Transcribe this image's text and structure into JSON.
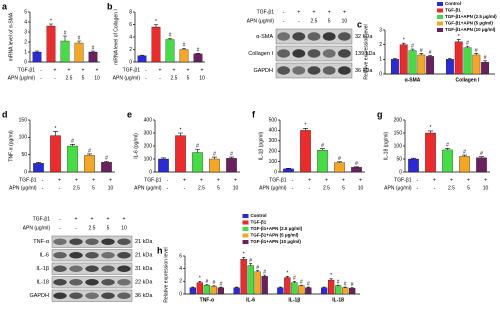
{
  "chart_data": [
    {
      "type": "bar",
      "panel": "a",
      "ylabel": "mRNA level of α-SMA",
      "values": [
        1.0,
        3.6,
        2.1,
        1.9,
        1.0
      ],
      "errors": [
        0.1,
        0.2,
        0.5,
        0.2,
        0.1
      ],
      "colors": [
        "#2a2ad8",
        "#ee2a2a",
        "#44dd44",
        "#f5a623",
        "#6b2060"
      ],
      "markers": [
        null,
        "*",
        "#",
        "#",
        "#"
      ],
      "ylim": [
        0,
        5
      ],
      "yticks": [
        0,
        1,
        2,
        3,
        4,
        5
      ],
      "treatments": [
        {
          "label": "TGF-β1",
          "marks": [
            "-",
            "+",
            "+",
            "+",
            "+"
          ]
        },
        {
          "label": "APN (μg/ml)",
          "marks": [
            "-",
            "-",
            "2.5",
            "5",
            "10"
          ]
        }
      ]
    },
    {
      "type": "bar",
      "panel": "b",
      "ylabel": "mRNA level of Collagen I",
      "values": [
        1.0,
        5.6,
        3.6,
        2.0,
        1.3
      ],
      "errors": [
        0.1,
        0.4,
        0.2,
        0.2,
        0.1
      ],
      "colors": [
        "#2a2ad8",
        "#ee2a2a",
        "#44dd44",
        "#f5a623",
        "#6b2060"
      ],
      "markers": [
        null,
        "*",
        "#",
        "#",
        "#"
      ],
      "ylim": [
        0,
        8
      ],
      "yticks": [
        0,
        2,
        4,
        6,
        8
      ],
      "treatments": [
        {
          "label": "TGF-β1",
          "marks": [
            "-",
            "+",
            "+",
            "+",
            "+"
          ]
        },
        {
          "label": "APN (μg/ml)",
          "marks": [
            "-",
            "-",
            "2.5",
            "5",
            "10"
          ]
        }
      ]
    },
    {
      "type": "grouped_bar",
      "panel": "c",
      "ylabel": "Relative expression level",
      "categories": [
        "α-SMA",
        "Collagen I"
      ],
      "legend": "upper right",
      "ylim": [
        0,
        3
      ],
      "yticks": [
        0,
        1,
        2,
        3
      ],
      "series": [
        {
          "name": "Control",
          "color": "#2a2ad8",
          "values": [
            1.0,
            1.0
          ],
          "errors": [
            0.05,
            0.05
          ],
          "markers": [
            null,
            null
          ]
        },
        {
          "name": "TGF-β1",
          "color": "#ee2a2a",
          "values": [
            2.0,
            2.2
          ],
          "errors": [
            0.1,
            0.15
          ],
          "markers": [
            "*",
            "*"
          ]
        },
        {
          "name": "TGF-β1+APN (2.5 μg/ml)",
          "color": "#44dd44",
          "values": [
            1.6,
            1.8
          ],
          "errors": [
            0.1,
            0.1
          ],
          "markers": [
            "#",
            "#"
          ]
        },
        {
          "name": "TGF-β1+APN (5 μg/ml)",
          "color": "#f5a623",
          "values": [
            1.3,
            1.3
          ],
          "errors": [
            0.1,
            0.1
          ],
          "markers": [
            "#",
            "#"
          ]
        },
        {
          "name": "TGF-β1+APN (10 μg/ml)",
          "color": "#6b2060",
          "values": [
            1.2,
            0.8
          ],
          "errors": [
            0.05,
            0.1
          ],
          "markers": [
            "#",
            "#"
          ]
        }
      ]
    },
    {
      "type": "bar",
      "panel": "d",
      "ylabel": "TNF-α (pg/ml)",
      "values": [
        25,
        105,
        75,
        48,
        28
      ],
      "errors": [
        3,
        12,
        5,
        4,
        3
      ],
      "colors": [
        "#2a2ad8",
        "#ee2a2a",
        "#44dd44",
        "#f5a623",
        "#6b2060"
      ],
      "markers": [
        null,
        "*",
        "#",
        "#",
        "#"
      ],
      "ylim": [
        0,
        150
      ],
      "yticks": [
        0,
        50,
        100,
        150
      ],
      "treatments": [
        {
          "label": "TGF-β1",
          "marks": [
            "-",
            "+",
            "+",
            "+",
            "+"
          ]
        },
        {
          "label": "APN (μg/ml)",
          "marks": [
            "-",
            "-",
            "2.5",
            "5",
            "10"
          ]
        }
      ]
    },
    {
      "type": "bar",
      "panel": "e",
      "ylabel": "IL-6 (pg/ml)",
      "values": [
        100,
        280,
        150,
        100,
        105
      ],
      "errors": [
        8,
        20,
        25,
        15,
        10
      ],
      "colors": [
        "#2a2ad8",
        "#ee2a2a",
        "#44dd44",
        "#f5a623",
        "#6b2060"
      ],
      "markers": [
        null,
        "*",
        "#",
        "#",
        "#"
      ],
      "ylim": [
        0,
        400
      ],
      "yticks": [
        0,
        100,
        200,
        300,
        400
      ],
      "treatments": [
        {
          "label": "TGF-β1",
          "marks": [
            "-",
            "+",
            "+",
            "+",
            "+"
          ]
        },
        {
          "label": "APN (μg/ml)",
          "marks": [
            "-",
            "-",
            "2.5",
            "5",
            "10"
          ]
        }
      ]
    },
    {
      "type": "bar",
      "panel": "f",
      "ylabel": "IL-1β (pg/ml)",
      "values": [
        30,
        400,
        210,
        90,
        45
      ],
      "errors": [
        5,
        20,
        15,
        8,
        5
      ],
      "colors": [
        "#2a2ad8",
        "#ee2a2a",
        "#44dd44",
        "#f5a623",
        "#6b2060"
      ],
      "markers": [
        null,
        "*",
        "#",
        "#",
        "#"
      ],
      "ylim": [
        0,
        500
      ],
      "yticks": [
        0,
        100,
        200,
        300,
        400,
        500
      ],
      "treatments": [
        {
          "label": "TGF-β1",
          "marks": [
            "-",
            "+",
            "+",
            "+",
            "+"
          ]
        },
        {
          "label": "APN (μg/ml)",
          "marks": [
            "-",
            "-",
            "2.5",
            "5",
            "10"
          ]
        }
      ]
    },
    {
      "type": "bar",
      "panel": "g",
      "ylabel": "IL-18 (pg/ml)",
      "values": [
        50,
        150,
        85,
        60,
        55
      ],
      "errors": [
        3,
        8,
        6,
        5,
        4
      ],
      "colors": [
        "#2a2ad8",
        "#ee2a2a",
        "#44dd44",
        "#f5a623",
        "#6b2060"
      ],
      "markers": [
        null,
        "*",
        "#",
        "#",
        "#"
      ],
      "ylim": [
        0,
        200
      ],
      "yticks": [
        0,
        50,
        100,
        150,
        200
      ],
      "treatments": [
        {
          "label": "TGF-β1",
          "marks": [
            "-",
            "+",
            "+",
            "+",
            "+"
          ]
        },
        {
          "label": "APN (μg/ml)",
          "marks": [
            "-",
            "-",
            "2.5",
            "5",
            "10"
          ]
        }
      ]
    },
    {
      "type": "grouped_bar",
      "panel": "h",
      "ylabel": "Relative expression level",
      "categories": [
        "TNF-α",
        "IL-6",
        "IL-1β",
        "IL-18"
      ],
      "legend": "upper center",
      "ylim": [
        0,
        6
      ],
      "yticks": [
        0,
        2,
        4,
        6
      ],
      "series": [
        {
          "name": "Control",
          "color": "#2a2ad8",
          "values": [
            1.0,
            1.0,
            1.0,
            1.0
          ],
          "errors": [
            0.1,
            0.1,
            0.1,
            0.1
          ],
          "markers": [
            null,
            null,
            null,
            null
          ]
        },
        {
          "name": "TGF-β1",
          "color": "#ee2a2a",
          "values": [
            1.8,
            5.5,
            2.6,
            2.2
          ],
          "errors": [
            0.2,
            0.3,
            0.2,
            0.2
          ],
          "markers": [
            "*",
            "*",
            "*",
            "*"
          ]
        },
        {
          "name": "TGF-β1+APN (2.5 μg/ml)",
          "color": "#44dd44",
          "values": [
            1.4,
            4.5,
            1.8,
            1.3
          ],
          "errors": [
            0.1,
            0.3,
            0.2,
            0.1
          ],
          "markers": [
            "#",
            "#",
            "#",
            "#"
          ]
        },
        {
          "name": "TGF-β1+APN (5 μg/ml)",
          "color": "#f5a623",
          "values": [
            1.2,
            3.5,
            1.3,
            1.0
          ],
          "errors": [
            0.1,
            0.2,
            0.1,
            0.1
          ],
          "markers": [
            "#",
            "#",
            "#",
            "#"
          ]
        },
        {
          "name": "TGF-β1+APN (10 μg/ml)",
          "color": "#6b2060",
          "values": [
            1.0,
            2.8,
            1.0,
            0.9
          ],
          "errors": [
            0.1,
            0.2,
            0.1,
            0.1
          ],
          "markers": [
            "#",
            "#",
            "#",
            "#"
          ]
        }
      ]
    }
  ],
  "blots": [
    {
      "treatments": [
        {
          "label": "TGF-β1",
          "marks": [
            "-",
            "+",
            "+",
            "+",
            "+"
          ]
        },
        {
          "label": "APN (μg/ml)",
          "marks": [
            "-",
            "-",
            "2.5",
            "5",
            "10"
          ]
        }
      ],
      "bands": [
        {
          "label": "α-SMA",
          "size": "32 kDa"
        },
        {
          "label": "Collagen I",
          "size": "139 kDa"
        },
        {
          "label": "GAPDH",
          "size": "36 kDa"
        }
      ]
    },
    {
      "treatments": [
        {
          "label": "TGF-β1",
          "marks": [
            "-",
            "+",
            "+",
            "+",
            "+"
          ]
        },
        {
          "label": "APN (μg/ml)",
          "marks": [
            "-",
            "-",
            "2.5",
            "5",
            "10"
          ]
        }
      ],
      "bands": [
        {
          "label": "TNF-α",
          "size": "21 kDa"
        },
        {
          "label": "IL-6",
          "size": "21 kDa"
        },
        {
          "label": "IL-1β",
          "size": "31 kDa"
        },
        {
          "label": "IL-18",
          "size": "22 kDa"
        },
        {
          "label": "GAPDH",
          "size": "36 kDa"
        }
      ]
    }
  ]
}
